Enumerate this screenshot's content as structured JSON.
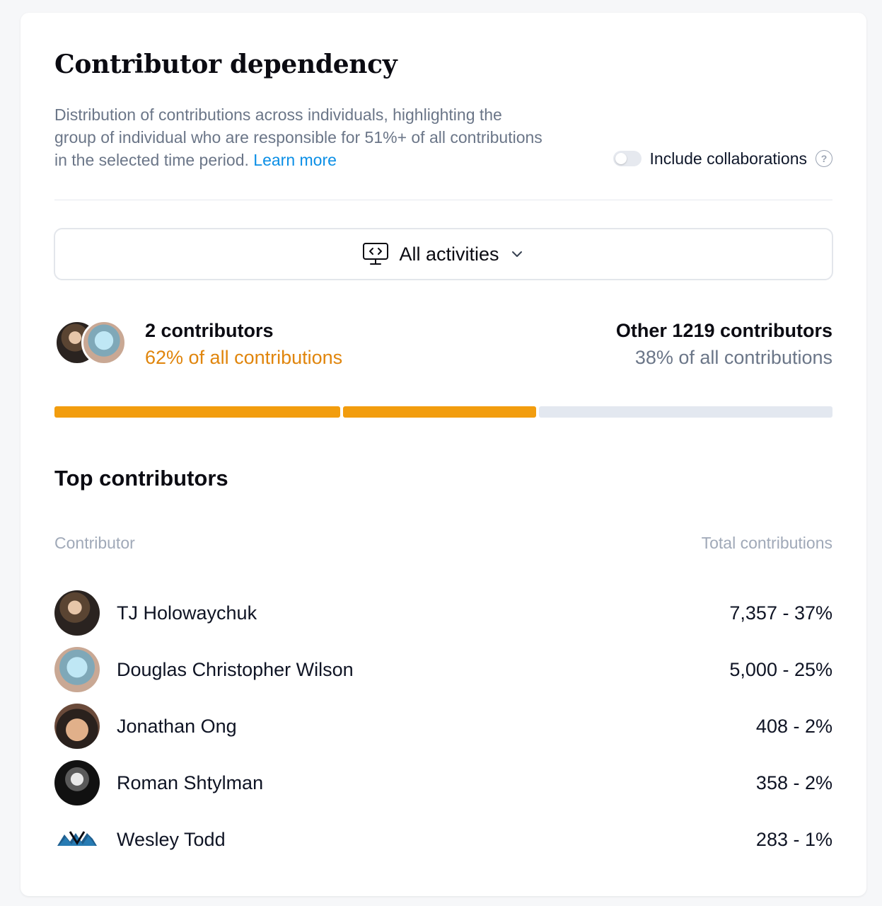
{
  "header": {
    "title": "Contributor dependency",
    "description": "Distribution of contributions across individuals, highlighting the group of individual who are responsible for 51%+ of all contributions in the selected time period.",
    "learn_more": "Learn more"
  },
  "collaborations": {
    "label": "Include collaborations",
    "enabled": false,
    "help_icon": "question-circle-icon"
  },
  "activity_filter": {
    "icon": "monitor-code-icon",
    "label": "All activities",
    "chevron_icon": "chevron-down-icon"
  },
  "summary": {
    "top": {
      "count_label": "2 contributors",
      "share_label": "62% of all contributions"
    },
    "other": {
      "count_label": "Other 1219 contributors",
      "share_label": "38% of all contributions"
    }
  },
  "distribution_bar": {
    "segments": [
      {
        "share": 37,
        "color": "#f29d0e"
      },
      {
        "share": 25,
        "color": "#f29d0e"
      },
      {
        "share": 38,
        "color": "#e3e8f0"
      }
    ]
  },
  "top_contributors": {
    "title": "Top contributors",
    "columns": {
      "contributor": "Contributor",
      "total": "Total contributions"
    },
    "rows": [
      {
        "name": "TJ Holowaychuk",
        "value": "7,357 - 37%"
      },
      {
        "name": "Douglas Christopher Wilson",
        "value": "5,000 - 25%"
      },
      {
        "name": "Jonathan Ong",
        "value": "408 - 2%"
      },
      {
        "name": "Roman Shtylman",
        "value": "358 - 2%"
      },
      {
        "name": "Wesley Todd",
        "value": "283 - 1%"
      }
    ]
  },
  "colors": {
    "accent_orange": "#f29d0e",
    "orange_text": "#e0850c",
    "link_blue": "#0b8fe6",
    "muted_text": "#6b7688",
    "bar_rest": "#e3e8f0"
  }
}
